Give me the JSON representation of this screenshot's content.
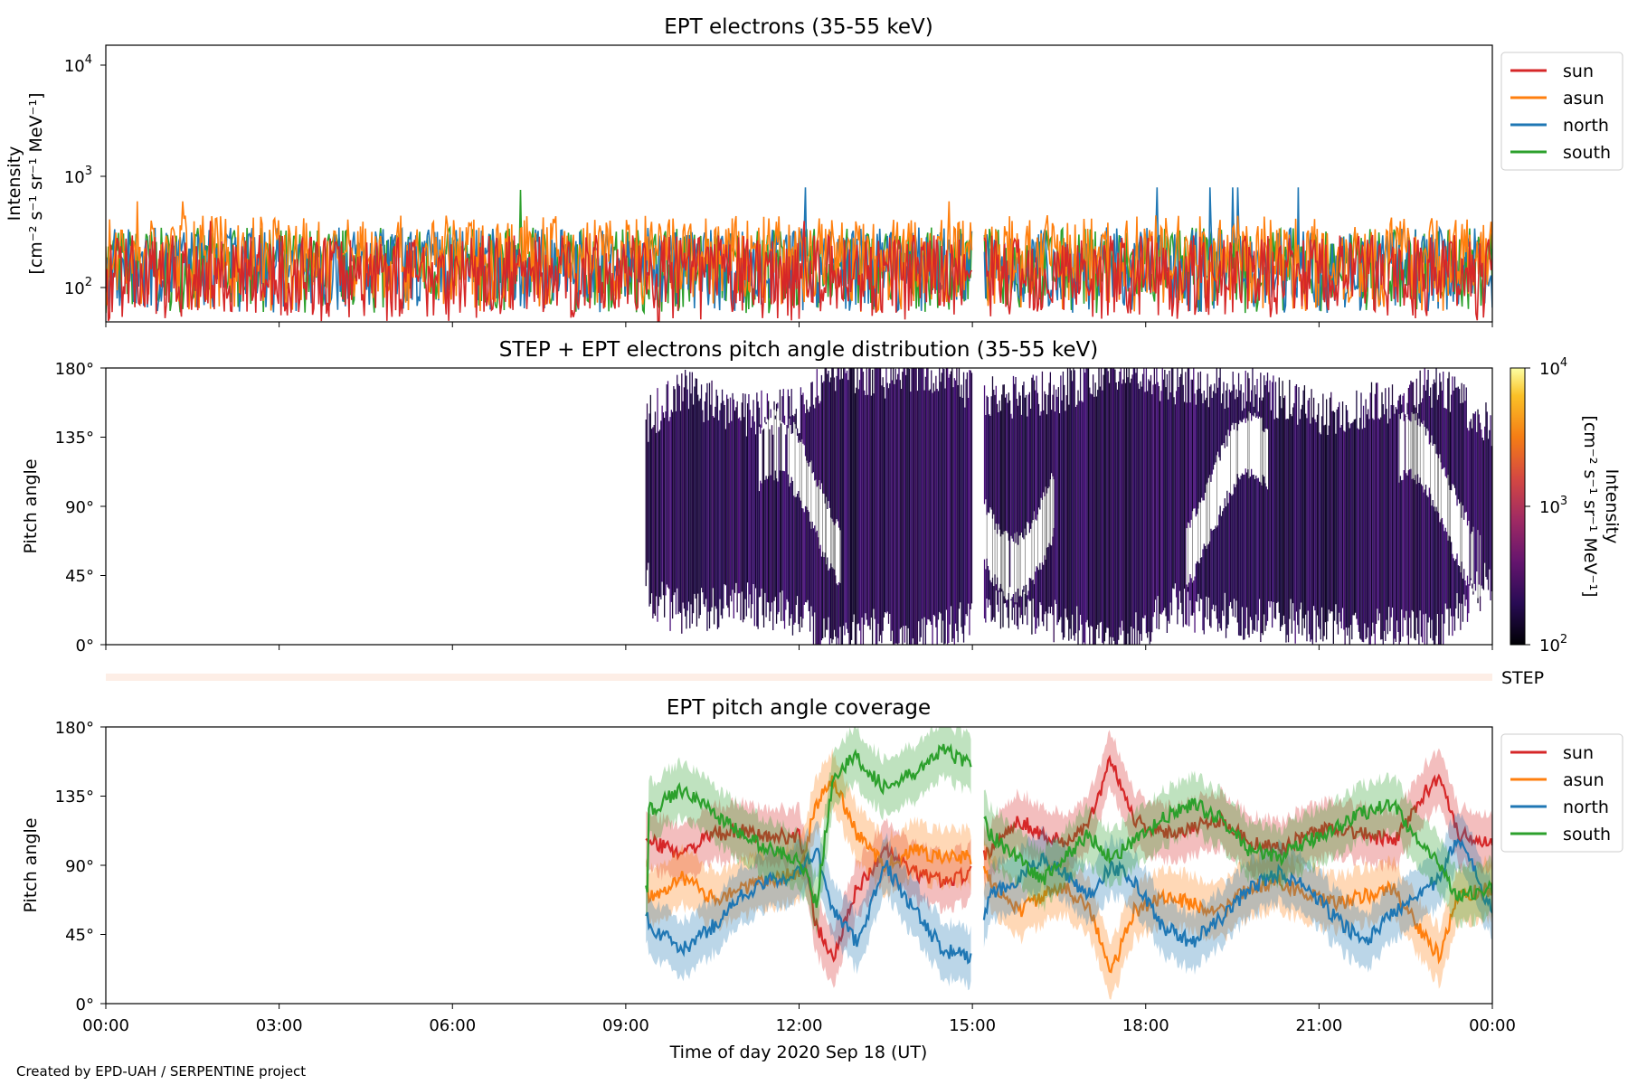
{
  "footer": "Created by EPD-UAH / SERPENTINE project",
  "xaxis": {
    "label": "Time of day 2020 Sep 18 (UT)",
    "ticks": [
      "00:00",
      "03:00",
      "06:00",
      "09:00",
      "12:00",
      "15:00",
      "18:00",
      "21:00",
      "00:00"
    ],
    "range_hours": [
      0,
      24
    ]
  },
  "colors": {
    "sun": "#d62728",
    "asun": "#ff7f0e",
    "north": "#1f77b4",
    "south": "#2ca02c",
    "step": "#fdeee6"
  },
  "panels": {
    "p1": {
      "title": "EPT electrons (35-55 keV)",
      "ylabel_line1": "Intensity",
      "ylabel_line2": "[cm⁻² s⁻¹ sr⁻¹ MeV⁻¹]",
      "ytick_base": [
        "10",
        "10",
        "10"
      ],
      "ytick_exp": [
        "4",
        "3",
        "2"
      ]
    },
    "p2": {
      "title": "STEP + EPT electrons pitch angle distribution (35-55 keV)",
      "ylabel": "Pitch angle",
      "yticks": [
        "180°",
        "135°",
        "90°",
        "45°",
        "0°"
      ],
      "colorbar_label": "Intensity",
      "colorbar_units": "[cm⁻² s⁻¹ sr⁻¹ MeV⁻¹]",
      "colorbar_tick_base": [
        "10",
        "10",
        "10"
      ],
      "colorbar_tick_exp": [
        "4",
        "3",
        "2"
      ]
    },
    "step": {
      "label": "STEP"
    },
    "p3": {
      "title": "EPT pitch angle coverage",
      "ylabel": "Pitch angle",
      "yticks": [
        "180°",
        "135°",
        "90°",
        "45°",
        "0°"
      ]
    }
  },
  "legend": [
    "sun",
    "asun",
    "north",
    "south"
  ],
  "chart_data": [
    {
      "type": "line",
      "title": "EPT electrons (35-55 keV)",
      "xlabel": "",
      "ylabel": "Intensity [cm⁻² s⁻¹ sr⁻¹ MeV⁻¹]",
      "yscale": "log",
      "ylim": [
        50,
        15000
      ],
      "xlim_hours": [
        0,
        24
      ],
      "data_gap_hours": [
        15.0,
        15.2
      ],
      "series": [
        {
          "name": "sun",
          "typical_range": [
            50,
            300
          ],
          "peak": 400
        },
        {
          "name": "asun",
          "typical_range": [
            60,
            450
          ],
          "peak": 600
        },
        {
          "name": "north",
          "typical_range": [
            60,
            350
          ],
          "peak": 800
        },
        {
          "name": "south",
          "typical_range": [
            60,
            350
          ],
          "peak": 760
        }
      ],
      "legend_position": "outside-right"
    },
    {
      "type": "heatmap",
      "title": "STEP + EPT electrons pitch angle distribution (35-55 keV)",
      "ylabel": "Pitch angle",
      "ylim_deg": [
        0,
        180
      ],
      "colorscale": "inferno",
      "color_log_range": [
        100,
        10000
      ],
      "data_start_hours": 9.35,
      "data_gap_hours": [
        15.0,
        15.2
      ],
      "envelope": [
        {
          "t": 9.4,
          "min": 30,
          "max": 148
        },
        {
          "t": 10.0,
          "min": 20,
          "max": 165
        },
        {
          "t": 11.0,
          "min": 28,
          "max": 150
        },
        {
          "t": 12.0,
          "min": 18,
          "max": 152
        },
        {
          "t": 12.6,
          "min": 3,
          "max": 180
        },
        {
          "t": 13.5,
          "min": 10,
          "max": 175
        },
        {
          "t": 14.0,
          "min": 0,
          "max": 180
        },
        {
          "t": 14.8,
          "min": 15,
          "max": 170
        },
        {
          "t": 15.5,
          "min": 25,
          "max": 160
        },
        {
          "t": 16.5,
          "min": 15,
          "max": 165
        },
        {
          "t": 17.5,
          "min": 0,
          "max": 180
        },
        {
          "t": 18.5,
          "min": 25,
          "max": 170
        },
        {
          "t": 20.0,
          "min": 15,
          "max": 165
        },
        {
          "t": 21.0,
          "min": 15,
          "max": 150
        },
        {
          "t": 22.5,
          "min": 10,
          "max": 160
        },
        {
          "t": 23.0,
          "min": 5,
          "max": 170
        },
        {
          "t": 24.0,
          "min": 45,
          "max": 142
        }
      ]
    },
    {
      "type": "line",
      "title": "EPT pitch angle coverage",
      "ylabel": "Pitch angle",
      "ylim_deg": [
        0,
        180
      ],
      "shaded_band_halfwidth_deg": 18,
      "data_start_hours": 9.35,
      "data_gap_hours": [
        15.0,
        15.2
      ],
      "series": [
        {
          "name": "sun",
          "points": [
            [
              9.4,
              105
            ],
            [
              10.0,
              98
            ],
            [
              10.5,
              110
            ],
            [
              11.0,
              112
            ],
            [
              11.5,
              108
            ],
            [
              12.0,
              110
            ],
            [
              12.3,
              50
            ],
            [
              12.6,
              30
            ],
            [
              13.0,
              75
            ],
            [
              13.5,
              100
            ],
            [
              14.0,
              85
            ],
            [
              14.5,
              80
            ],
            [
              15.0,
              85
            ],
            [
              15.3,
              100
            ],
            [
              15.8,
              120
            ],
            [
              16.2,
              110
            ],
            [
              16.6,
              105
            ],
            [
              17.0,
              115
            ],
            [
              17.4,
              160
            ],
            [
              17.8,
              120
            ],
            [
              18.3,
              110
            ],
            [
              18.8,
              115
            ],
            [
              19.3,
              120
            ],
            [
              19.8,
              105
            ],
            [
              20.3,
              100
            ],
            [
              20.8,
              110
            ],
            [
              21.3,
              115
            ],
            [
              21.8,
              110
            ],
            [
              22.3,
              105
            ],
            [
              22.8,
              135
            ],
            [
              23.1,
              150
            ],
            [
              23.4,
              110
            ],
            [
              24.0,
              105
            ]
          ]
        },
        {
          "name": "asun",
          "points": [
            [
              9.4,
              70
            ],
            [
              10.0,
              82
            ],
            [
              10.5,
              68
            ],
            [
              11.0,
              75
            ],
            [
              11.5,
              80
            ],
            [
              12.0,
              85
            ],
            [
              12.3,
              130
            ],
            [
              12.6,
              145
            ],
            [
              13.0,
              110
            ],
            [
              13.5,
              90
            ],
            [
              14.0,
              100
            ],
            [
              14.5,
              95
            ],
            [
              15.0,
              95
            ],
            [
              15.3,
              80
            ],
            [
              15.8,
              60
            ],
            [
              16.2,
              70
            ],
            [
              16.6,
              75
            ],
            [
              17.0,
              65
            ],
            [
              17.4,
              20
            ],
            [
              17.8,
              60
            ],
            [
              18.3,
              70
            ],
            [
              18.8,
              65
            ],
            [
              19.3,
              60
            ],
            [
              19.8,
              75
            ],
            [
              20.3,
              80
            ],
            [
              20.8,
              70
            ],
            [
              21.3,
              65
            ],
            [
              21.8,
              70
            ],
            [
              22.3,
              75
            ],
            [
              22.8,
              45
            ],
            [
              23.1,
              30
            ],
            [
              23.4,
              70
            ],
            [
              24.0,
              75
            ]
          ]
        },
        {
          "name": "north",
          "points": [
            [
              9.4,
              50
            ],
            [
              10.0,
              35
            ],
            [
              10.5,
              50
            ],
            [
              11.0,
              70
            ],
            [
              11.5,
              80
            ],
            [
              12.0,
              85
            ],
            [
              12.3,
              100
            ],
            [
              12.6,
              60
            ],
            [
              13.0,
              40
            ],
            [
              13.5,
              90
            ],
            [
              14.0,
              60
            ],
            [
              14.5,
              35
            ],
            [
              15.0,
              30
            ],
            [
              15.3,
              70
            ],
            [
              15.8,
              80
            ],
            [
              16.2,
              95
            ],
            [
              16.6,
              85
            ],
            [
              17.0,
              70
            ],
            [
              17.4,
              90
            ],
            [
              17.8,
              80
            ],
            [
              18.3,
              50
            ],
            [
              18.8,
              40
            ],
            [
              19.3,
              55
            ],
            [
              19.8,
              75
            ],
            [
              20.3,
              85
            ],
            [
              20.8,
              75
            ],
            [
              21.3,
              55
            ],
            [
              21.8,
              40
            ],
            [
              22.3,
              60
            ],
            [
              22.8,
              75
            ],
            [
              23.1,
              80
            ],
            [
              23.4,
              110
            ],
            [
              24.0,
              60
            ]
          ]
        },
        {
          "name": "south",
          "points": [
            [
              9.4,
              125
            ],
            [
              10.0,
              140
            ],
            [
              10.5,
              125
            ],
            [
              11.0,
              110
            ],
            [
              11.5,
              100
            ],
            [
              12.0,
              95
            ],
            [
              12.3,
              65
            ],
            [
              12.6,
              150
            ],
            [
              13.0,
              160
            ],
            [
              13.5,
              140
            ],
            [
              14.0,
              150
            ],
            [
              14.5,
              165
            ],
            [
              15.0,
              155
            ],
            [
              15.3,
              110
            ],
            [
              15.8,
              95
            ],
            [
              16.2,
              80
            ],
            [
              16.6,
              95
            ],
            [
              17.0,
              110
            ],
            [
              17.4,
              95
            ],
            [
              17.8,
              105
            ],
            [
              18.3,
              120
            ],
            [
              18.8,
              130
            ],
            [
              19.3,
              120
            ],
            [
              19.8,
              100
            ],
            [
              20.3,
              95
            ],
            [
              20.8,
              105
            ],
            [
              21.3,
              115
            ],
            [
              21.8,
              125
            ],
            [
              22.3,
              130
            ],
            [
              22.8,
              100
            ],
            [
              23.1,
              90
            ],
            [
              23.4,
              70
            ],
            [
              24.0,
              75
            ]
          ]
        }
      ],
      "legend_position": "outside-right"
    }
  ]
}
